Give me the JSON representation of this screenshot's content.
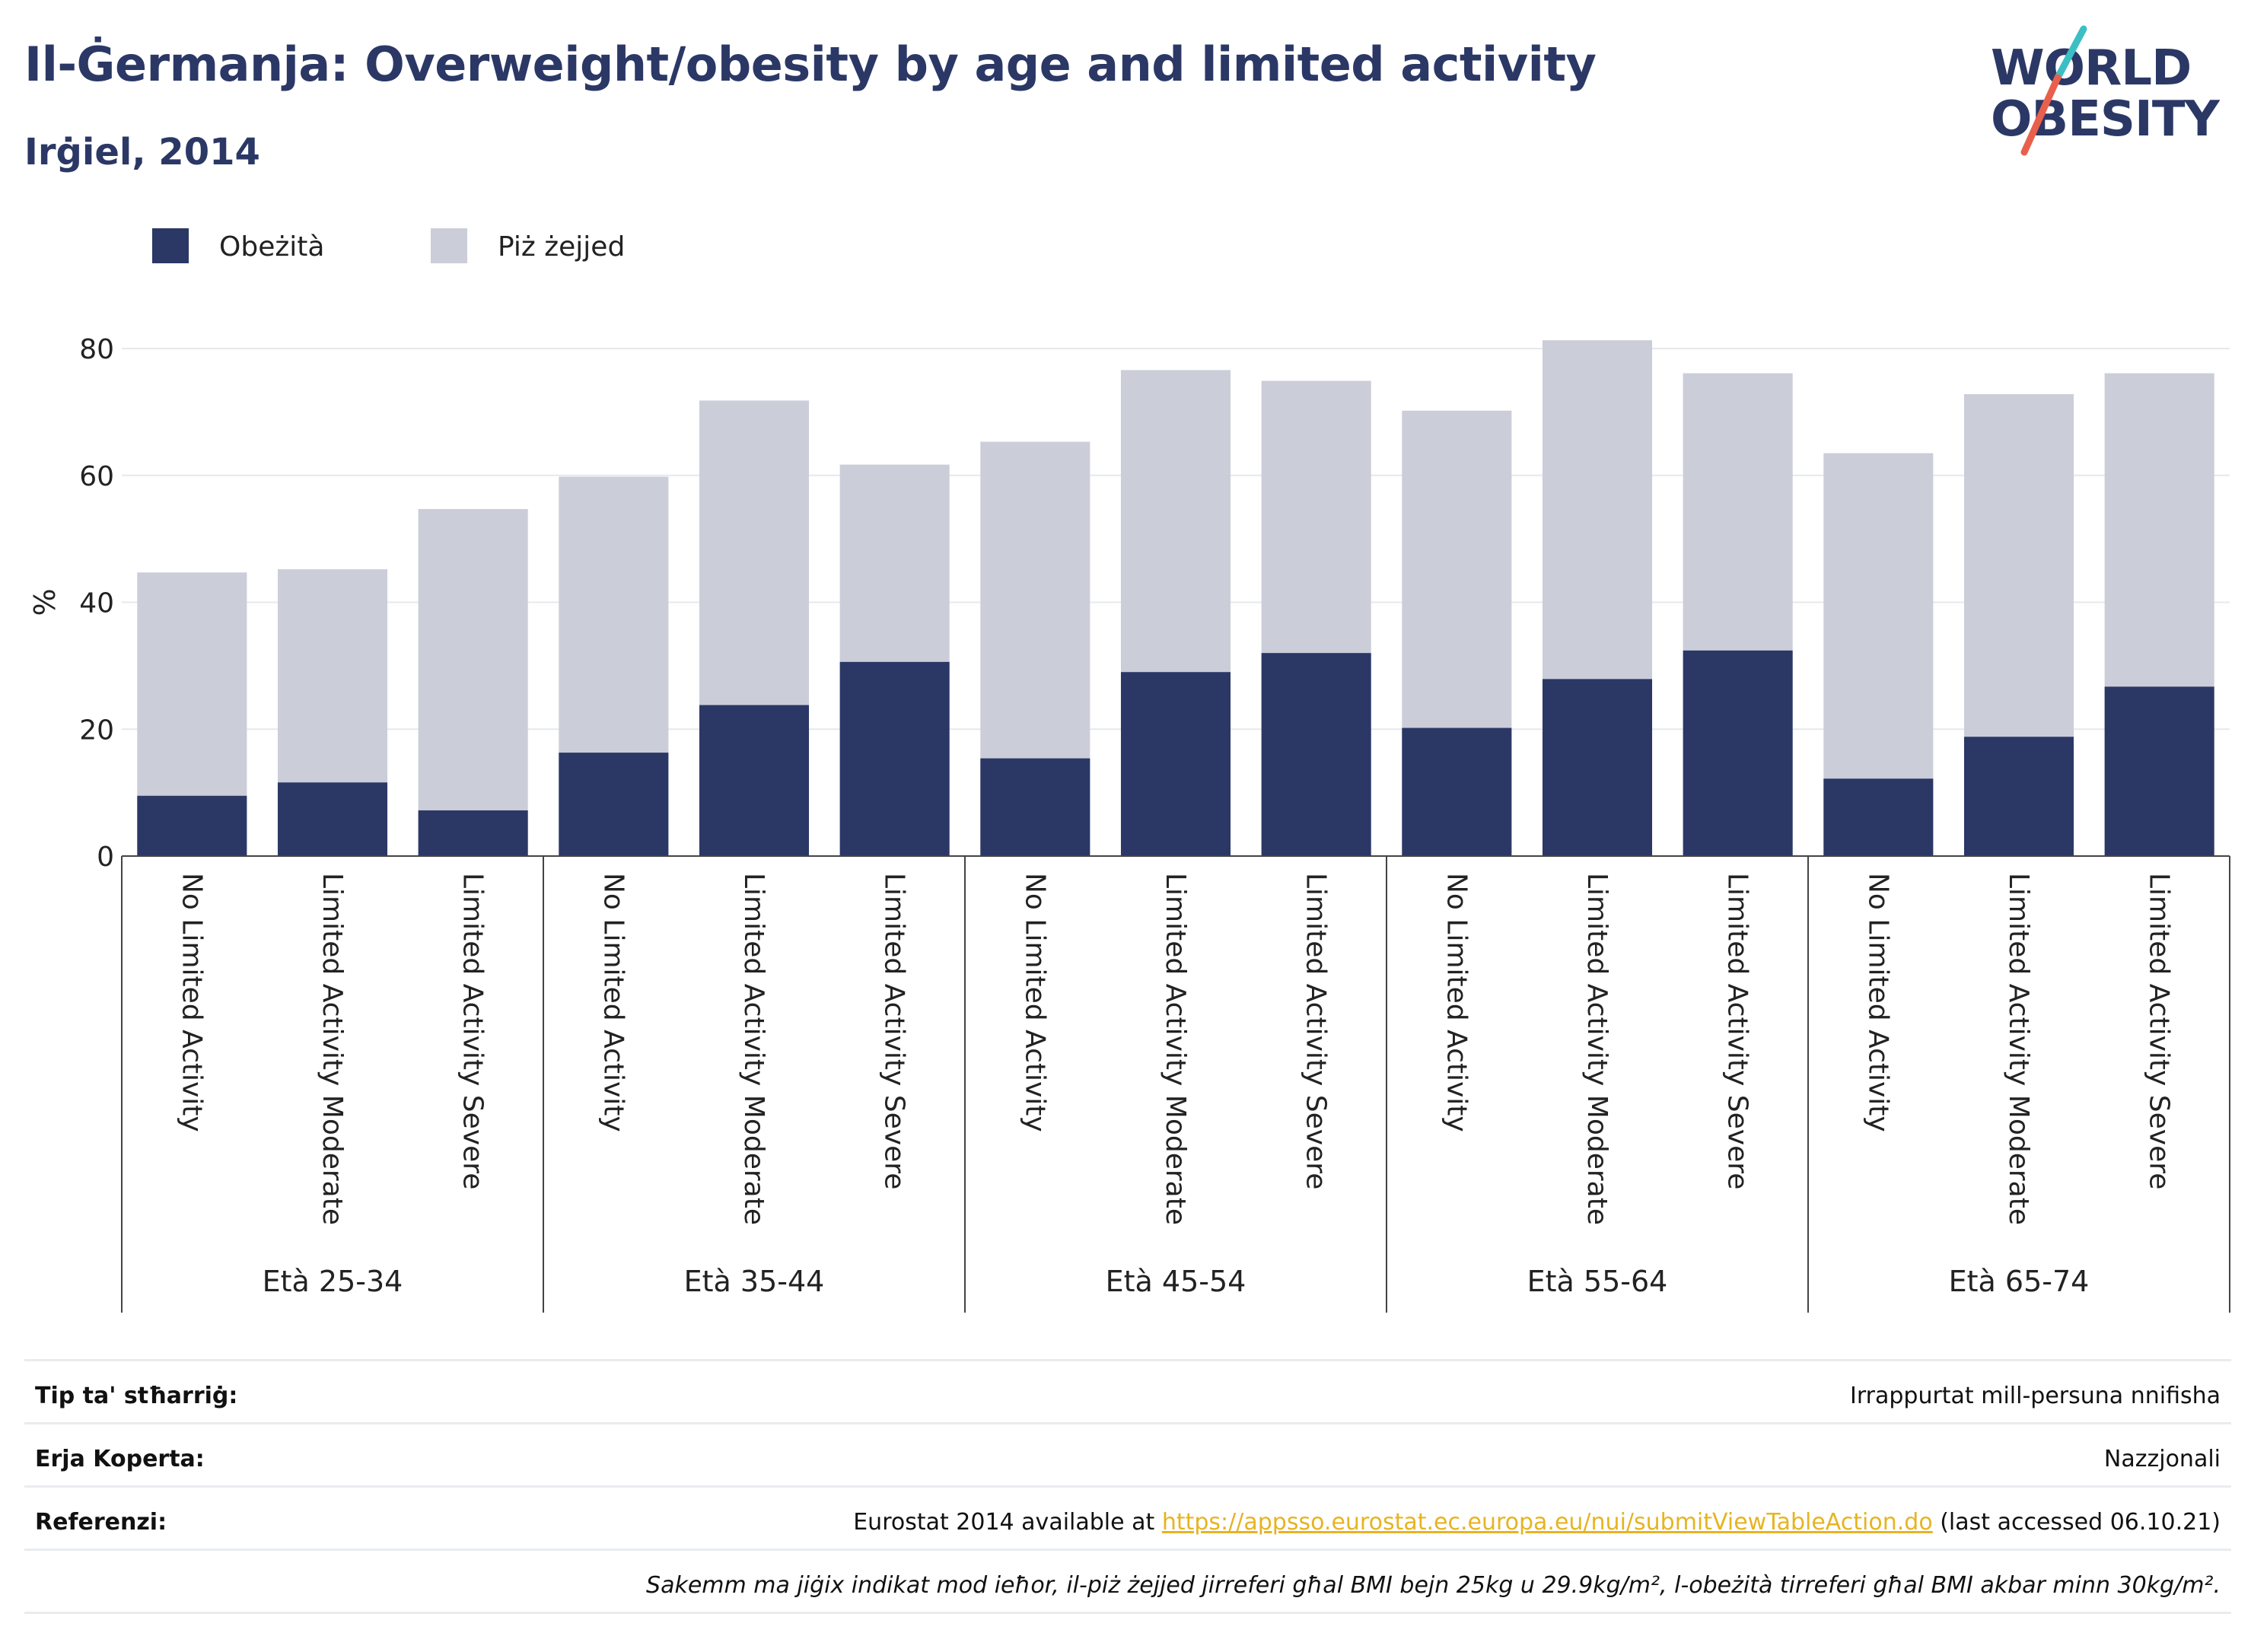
{
  "header": {
    "title": "Il-Ġermanja: Overweight/obesity by age and limited activity",
    "subtitle": "Irġiel, 2014"
  },
  "logo": {
    "line1": "WORLD",
    "line2": "OBESITY",
    "colors": {
      "text": "#2b3866",
      "slash_top": "#3bbfc4",
      "slash_bottom": "#e8604c"
    }
  },
  "chart_data": {
    "type": "bar",
    "stacked": false,
    "overlay": true,
    "ylabel": "%",
    "ylim": [
      0,
      80
    ],
    "yticks": [
      0,
      20,
      40,
      60,
      80
    ],
    "grid": true,
    "legend_position": "top-left",
    "categories": [
      "No Limited Activity",
      "Limited Activity Moderate",
      "Limited Activity Severe",
      "No Limited Activity",
      "Limited Activity Moderate",
      "Limited Activity Severe",
      "No Limited Activity",
      "Limited Activity Moderate",
      "Limited Activity Severe",
      "No Limited Activity",
      "Limited Activity Moderate",
      "Limited Activity Severe",
      "No Limited Activity",
      "Limited Activity Moderate",
      "Limited Activity Severe"
    ],
    "groups": [
      {
        "label": "Età 25-34",
        "start": 0,
        "count": 3
      },
      {
        "label": "Età 35-44",
        "start": 3,
        "count": 3
      },
      {
        "label": "Età 45-54",
        "start": 6,
        "count": 3
      },
      {
        "label": "Età 55-64",
        "start": 9,
        "count": 3
      },
      {
        "label": "Età 65-74",
        "start": 12,
        "count": 3
      }
    ],
    "series": [
      {
        "name": "Piż żejjed",
        "color": "#cbcdd9",
        "values": [
          44.7,
          45.2,
          54.7,
          59.8,
          71.8,
          61.7,
          65.3,
          76.6,
          74.9,
          70.2,
          81.3,
          76.1,
          63.5,
          72.8,
          76.1
        ]
      },
      {
        "name": "Obeżità",
        "color": "#2b3866",
        "values": [
          9.5,
          11.6,
          7.2,
          16.3,
          23.8,
          30.6,
          15.4,
          29.0,
          32.0,
          20.2,
          27.9,
          32.4,
          12.2,
          18.8,
          26.7
        ]
      }
    ],
    "legend_order": [
      "Obeżità",
      "Piż żejjed"
    ]
  },
  "info": {
    "rows": [
      {
        "label": "Tip ta' stħarriġ:",
        "value": "Irrappurtat mill-persuna nnifisha"
      },
      {
        "label": "Erja Koperta:",
        "value": "Nazzjonali"
      }
    ],
    "reference": {
      "label": "Referenzi:",
      "prefix": "Eurostat 2014 available at ",
      "link": "https://appsso.eurostat.ec.europa.eu/nui/submitViewTableAction.do",
      "suffix": " (last accessed 06.10.21)"
    },
    "note": "Sakemm ma jiġix indikat mod ieħor, il-piż żejjed jirreferi għal BMI bejn 25kg u 29.9kg/m², l-obeżità tirreferi għal BMI akbar minn 30kg/m²."
  }
}
